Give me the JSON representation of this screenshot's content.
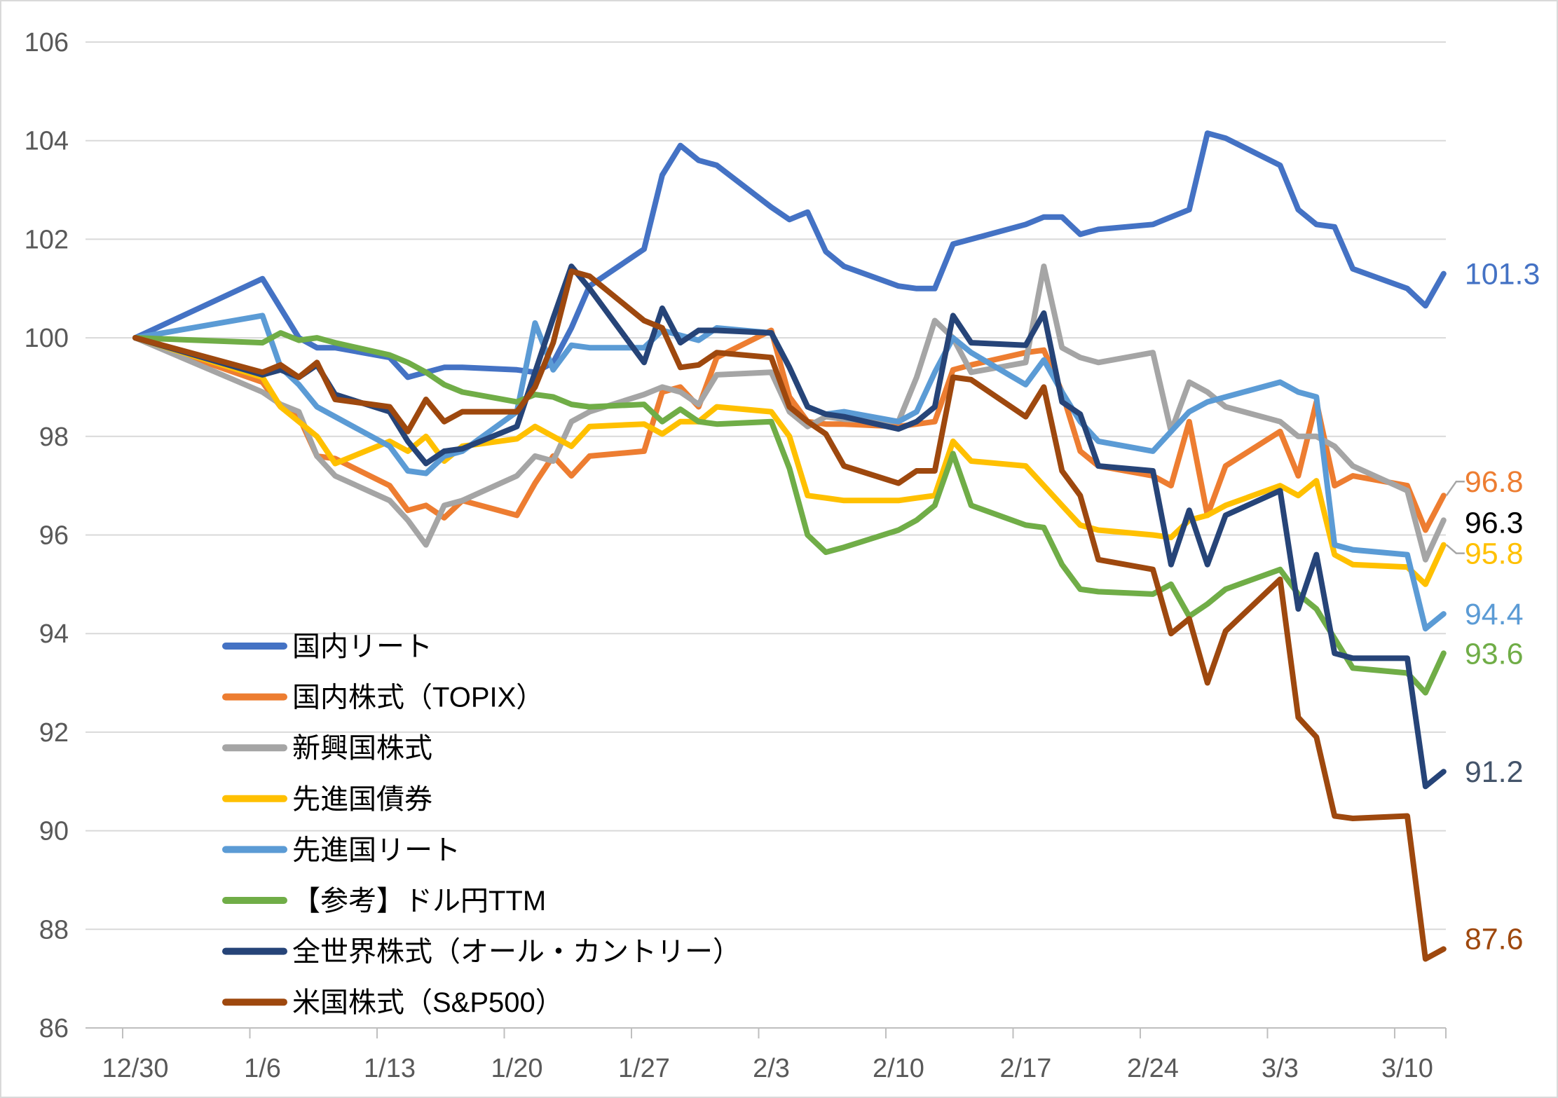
{
  "chart_data": {
    "type": "line",
    "title": "",
    "grid": true,
    "legend_position": "inside-bottom-left",
    "ylim": [
      86,
      106
    ],
    "y_ticks": [
      106,
      104,
      102,
      100,
      98,
      96,
      94,
      92,
      90,
      88,
      86
    ],
    "y_tick_labels": [
      "106",
      "104",
      "102",
      "100",
      "98",
      "96",
      "94",
      "92",
      "90",
      "88",
      "86"
    ],
    "x_tick_labels": [
      "12/30",
      "1/6",
      "1/13",
      "1/20",
      "1/27",
      "2/3",
      "2/10",
      "2/17",
      "2/24",
      "3/3",
      "3/10"
    ],
    "x_tick_days": [
      0,
      7,
      14,
      21,
      28,
      35,
      42,
      49,
      56,
      63,
      70
    ],
    "dates": [
      "12/30",
      "1/6",
      "1/7",
      "1/8",
      "1/9",
      "1/10",
      "1/13",
      "1/14",
      "1/15",
      "1/16",
      "1/17",
      "1/20",
      "1/21",
      "1/22",
      "1/23",
      "1/24",
      "1/27",
      "1/28",
      "1/29",
      "1/30",
      "1/31",
      "2/3",
      "2/4",
      "2/5",
      "2/6",
      "2/7",
      "2/10",
      "2/11",
      "2/12",
      "2/13",
      "2/14",
      "2/17",
      "2/18",
      "2/19",
      "2/20",
      "2/21",
      "2/24",
      "2/25",
      "2/26",
      "2/27",
      "2/28",
      "3/3",
      "3/4",
      "3/5",
      "3/6",
      "3/7",
      "3/10",
      "3/11",
      "3/12"
    ],
    "day_offsets": [
      0,
      7,
      8,
      9,
      10,
      11,
      14,
      15,
      16,
      17,
      18,
      21,
      22,
      23,
      24,
      25,
      28,
      29,
      30,
      31,
      32,
      35,
      36,
      37,
      38,
      39,
      42,
      43,
      44,
      45,
      46,
      49,
      50,
      51,
      52,
      53,
      56,
      57,
      58,
      59,
      60,
      63,
      64,
      65,
      66,
      67,
      70,
      71,
      72
    ],
    "series": [
      {
        "id": "domestic-reit",
        "name": "国内リート",
        "color": "#4472C4",
        "end_label": "101.3",
        "end_value": 101.3,
        "label_color": "#4472C4",
        "label_dy": 0,
        "leader": false,
        "values": [
          100,
          101.2,
          100.6,
          100.0,
          99.8,
          99.8,
          99.6,
          99.2,
          99.3,
          99.4,
          99.4,
          99.35,
          99.3,
          99.5,
          100.2,
          101.05,
          101.8,
          103.3,
          103.9,
          103.6,
          103.5,
          102.65,
          102.4,
          102.55,
          101.75,
          101.45,
          101.05,
          101.0,
          101.0,
          101.9,
          102.0,
          102.3,
          102.45,
          102.45,
          102.1,
          102.2,
          102.3,
          102.45,
          102.6,
          104.15,
          104.05,
          103.5,
          102.6,
          102.3,
          102.25,
          101.4,
          101.0,
          100.65,
          101.3
        ]
      },
      {
        "id": "domestic-stocks-topix",
        "name": "国内株式（TOPIX）",
        "color": "#ED7D31",
        "end_label": "96.8",
        "end_value": 96.8,
        "label_color": "#ED7D31",
        "label_dy": -20,
        "leader": true,
        "values": [
          100,
          99.1,
          98.6,
          98.4,
          97.6,
          97.55,
          97.0,
          96.5,
          96.6,
          96.35,
          96.7,
          96.4,
          97.05,
          97.6,
          97.2,
          97.6,
          97.7,
          98.9,
          99.0,
          98.6,
          99.6,
          100.15,
          98.8,
          98.3,
          98.25,
          98.25,
          98.2,
          98.25,
          98.3,
          99.35,
          99.45,
          99.7,
          99.75,
          98.9,
          97.7,
          97.4,
          97.2,
          97.0,
          98.3,
          96.4,
          97.4,
          98.1,
          97.2,
          98.7,
          97.0,
          97.2,
          97.0,
          96.1,
          96.8
        ]
      },
      {
        "id": "emerging-stocks",
        "name": "新興国株式",
        "color": "#A5A5A5",
        "end_label": "96.3",
        "end_value": 96.3,
        "label_color": "#000000",
        "label_dy": 3,
        "leader": false,
        "values": [
          100,
          98.9,
          98.65,
          98.5,
          97.6,
          97.2,
          96.7,
          96.3,
          95.8,
          96.6,
          96.7,
          97.2,
          97.6,
          97.5,
          98.3,
          98.5,
          98.85,
          99.0,
          98.9,
          98.65,
          99.25,
          99.3,
          98.5,
          98.2,
          98.4,
          98.35,
          98.3,
          99.2,
          100.35,
          100.0,
          99.3,
          99.5,
          101.45,
          99.8,
          99.6,
          99.5,
          99.7,
          98.1,
          99.1,
          98.9,
          98.6,
          98.3,
          98.0,
          98.0,
          97.8,
          97.4,
          96.9,
          95.5,
          96.3
        ]
      },
      {
        "id": "developed-bonds",
        "name": "先進国債券",
        "color": "#FFC000",
        "end_label": "95.8",
        "end_value": 95.8,
        "label_color": "#FFC000",
        "label_dy": 12,
        "leader": true,
        "values": [
          100,
          99.2,
          98.6,
          98.3,
          98.0,
          97.45,
          97.9,
          97.7,
          98.0,
          97.5,
          97.8,
          97.95,
          98.2,
          98.0,
          97.8,
          98.2,
          98.25,
          98.05,
          98.3,
          98.3,
          98.6,
          98.5,
          98.0,
          96.8,
          96.75,
          96.7,
          96.7,
          96.75,
          96.8,
          97.9,
          97.5,
          97.4,
          97.0,
          96.6,
          96.2,
          96.1,
          96.0,
          95.95,
          96.3,
          96.4,
          96.6,
          97.0,
          96.8,
          97.1,
          95.6,
          95.4,
          95.35,
          95.0,
          95.8
        ]
      },
      {
        "id": "developed-reit",
        "name": "先進国リート",
        "color": "#5B9BD5",
        "end_label": "94.4",
        "end_value": 94.4,
        "label_color": "#5B9BD5",
        "label_dy": 0,
        "leader": false,
        "values": [
          100,
          100.45,
          99.4,
          99.05,
          98.6,
          98.4,
          97.8,
          97.3,
          97.25,
          97.6,
          97.7,
          98.5,
          100.3,
          99.35,
          99.85,
          99.8,
          99.8,
          100.15,
          100.05,
          99.95,
          100.2,
          100.1,
          99.4,
          98.6,
          98.45,
          98.5,
          98.3,
          98.5,
          99.3,
          100.0,
          99.7,
          99.05,
          99.55,
          98.9,
          98.3,
          97.9,
          97.7,
          98.1,
          98.5,
          98.7,
          98.8,
          99.1,
          98.9,
          98.8,
          95.8,
          95.7,
          95.6,
          94.1,
          94.4
        ]
      },
      {
        "id": "usdjpy-ttm",
        "name": "【参考】ドル円TTM",
        "color": "#70AD47",
        "end_label": "93.6",
        "end_value": 93.6,
        "label_color": "#70AD47",
        "label_dy": 0,
        "leader": false,
        "values": [
          100,
          99.9,
          100.1,
          99.95,
          100.0,
          99.9,
          99.65,
          99.5,
          99.3,
          99.05,
          98.9,
          98.7,
          98.85,
          98.8,
          98.65,
          98.6,
          98.65,
          98.3,
          98.55,
          98.3,
          98.25,
          98.3,
          97.35,
          96.0,
          95.65,
          95.75,
          96.1,
          96.3,
          96.6,
          97.65,
          96.6,
          96.2,
          96.15,
          95.4,
          94.9,
          94.85,
          94.8,
          95.0,
          94.35,
          94.6,
          94.9,
          95.3,
          94.8,
          94.5,
          93.9,
          93.3,
          93.2,
          92.8,
          93.6
        ]
      },
      {
        "id": "global-stocks-acwi",
        "name": "全世界株式（オール・カントリー）",
        "color": "#264478",
        "end_label": "91.2",
        "end_value": 91.2,
        "label_color": "#44546A",
        "label_dy": 0,
        "leader": false,
        "values": [
          100,
          99.25,
          99.35,
          99.2,
          99.45,
          98.85,
          98.5,
          97.9,
          97.45,
          97.7,
          97.75,
          98.2,
          99.3,
          100.4,
          101.45,
          101.0,
          99.5,
          100.6,
          99.9,
          100.15,
          100.15,
          100.1,
          99.4,
          98.6,
          98.45,
          98.4,
          98.15,
          98.3,
          98.6,
          100.45,
          99.9,
          99.85,
          100.5,
          98.7,
          98.45,
          97.4,
          97.3,
          95.4,
          96.5,
          95.4,
          96.4,
          96.9,
          94.5,
          95.6,
          93.6,
          93.5,
          93.5,
          90.9,
          91.2
        ]
      },
      {
        "id": "us-stocks-sp500",
        "name": "米国株式（S&P500）",
        "color": "#9E480E",
        "end_label": "87.6",
        "end_value": 87.6,
        "label_color": "#9E480E",
        "label_dy": -15,
        "leader": false,
        "values": [
          100,
          99.3,
          99.45,
          99.2,
          99.5,
          98.75,
          98.6,
          98.1,
          98.75,
          98.3,
          98.5,
          98.5,
          99.0,
          99.9,
          101.35,
          101.25,
          100.35,
          100.2,
          99.4,
          99.45,
          99.7,
          99.6,
          98.6,
          98.3,
          98.05,
          97.4,
          97.05,
          97.3,
          97.3,
          99.2,
          99.15,
          98.4,
          99.0,
          97.3,
          96.8,
          95.5,
          95.3,
          94.0,
          94.3,
          93.0,
          94.05,
          95.1,
          92.3,
          91.9,
          90.3,
          90.25,
          90.3,
          87.4,
          87.6
        ]
      }
    ],
    "colors": {
      "gridline": "#D9D9D9",
      "axis_line": "#BFBFBF",
      "axis_text": "#595959",
      "legend_text": "#000000",
      "leader_line": "#A6A6A6",
      "background": "#FFFFFF"
    }
  }
}
